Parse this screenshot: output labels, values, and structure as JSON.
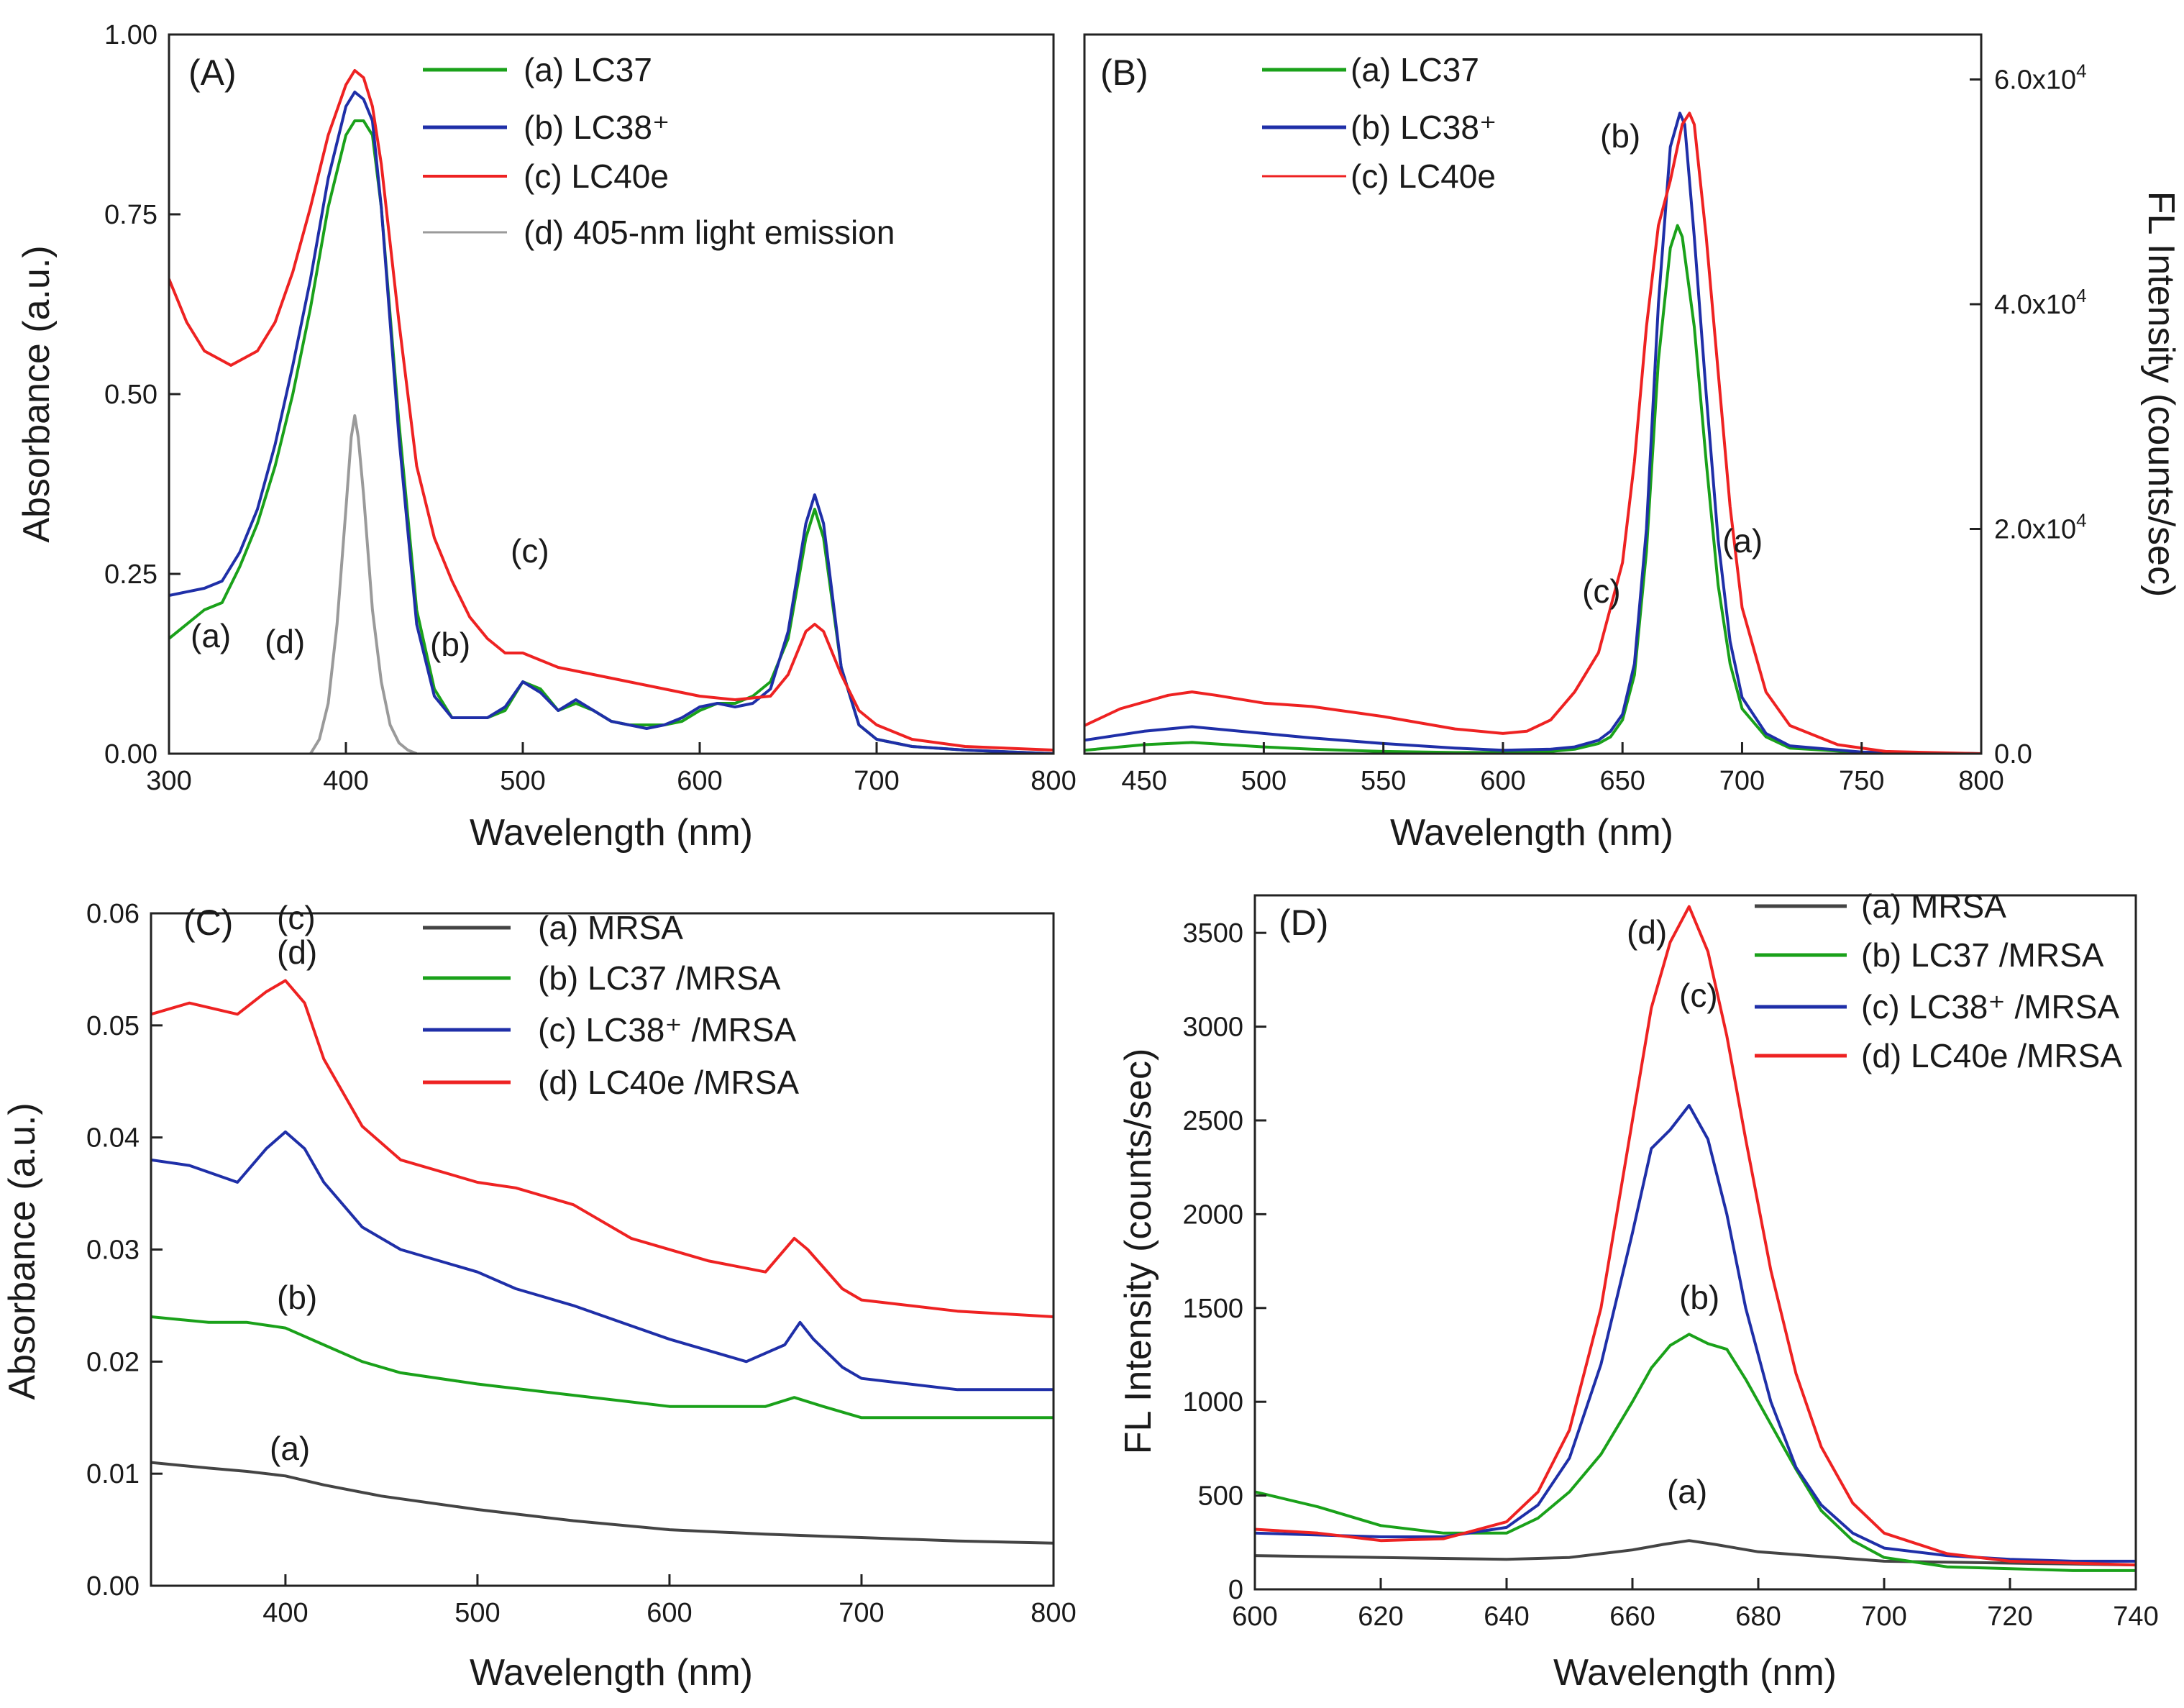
{
  "chart_data": [
    {
      "panel": "(A)",
      "type": "line",
      "xlabel": "Wavelength (nm)",
      "ylabel": "Absorbance (a.u.)",
      "xlim": [
        300,
        800
      ],
      "ylim": [
        0,
        1
      ],
      "xticks": [
        "300",
        "400",
        "500",
        "600",
        "700",
        "800"
      ],
      "yticks": [
        "0.00",
        "0.25",
        "0.50",
        "0.75",
        "1.00"
      ],
      "legend_position": "top-right",
      "series": [
        {
          "name": "(a) LC37",
          "color": "#1aa11a",
          "x": [
            300,
            320,
            330,
            340,
            350,
            360,
            370,
            380,
            390,
            400,
            405,
            410,
            415,
            420,
            430,
            440,
            450,
            460,
            470,
            480,
            490,
            500,
            510,
            520,
            530,
            540,
            550,
            560,
            570,
            580,
            590,
            600,
            610,
            620,
            630,
            640,
            650,
            660,
            665,
            670,
            680,
            690,
            700,
            720,
            750,
            800
          ],
          "y": [
            0.16,
            0.2,
            0.21,
            0.26,
            0.32,
            0.4,
            0.5,
            0.62,
            0.76,
            0.86,
            0.88,
            0.88,
            0.86,
            0.76,
            0.46,
            0.2,
            0.09,
            0.05,
            0.05,
            0.05,
            0.06,
            0.1,
            0.09,
            0.06,
            0.07,
            0.06,
            0.045,
            0.04,
            0.04,
            0.04,
            0.045,
            0.06,
            0.07,
            0.07,
            0.08,
            0.1,
            0.16,
            0.3,
            0.34,
            0.3,
            0.12,
            0.04,
            0.02,
            0.01,
            0.005,
            0.0
          ]
        },
        {
          "name": "(b) LC38⁺",
          "color": "#1f2fa8",
          "x": [
            300,
            320,
            330,
            340,
            350,
            360,
            370,
            380,
            390,
            400,
            405,
            410,
            415,
            420,
            430,
            440,
            450,
            460,
            470,
            480,
            490,
            500,
            510,
            520,
            530,
            540,
            550,
            560,
            570,
            580,
            590,
            600,
            610,
            620,
            630,
            640,
            650,
            660,
            665,
            670,
            680,
            690,
            700,
            720,
            750,
            800
          ],
          "y": [
            0.22,
            0.23,
            0.24,
            0.28,
            0.34,
            0.43,
            0.54,
            0.66,
            0.8,
            0.9,
            0.92,
            0.91,
            0.88,
            0.76,
            0.44,
            0.18,
            0.08,
            0.05,
            0.05,
            0.05,
            0.065,
            0.1,
            0.085,
            0.06,
            0.075,
            0.06,
            0.045,
            0.04,
            0.035,
            0.04,
            0.05,
            0.065,
            0.07,
            0.065,
            0.07,
            0.09,
            0.17,
            0.32,
            0.36,
            0.32,
            0.12,
            0.04,
            0.02,
            0.01,
            0.005,
            0.0
          ]
        },
        {
          "name": "(c) LC40e",
          "color": "#ee2222",
          "x": [
            300,
            310,
            320,
            335,
            350,
            360,
            370,
            380,
            390,
            400,
            405,
            410,
            415,
            420,
            430,
            440,
            450,
            460,
            470,
            480,
            490,
            500,
            510,
            520,
            540,
            560,
            580,
            600,
            620,
            640,
            650,
            660,
            665,
            670,
            680,
            690,
            700,
            720,
            750,
            800
          ],
          "y": [
            0.66,
            0.6,
            0.56,
            0.54,
            0.56,
            0.6,
            0.67,
            0.76,
            0.86,
            0.93,
            0.95,
            0.94,
            0.9,
            0.82,
            0.6,
            0.4,
            0.3,
            0.24,
            0.19,
            0.16,
            0.14,
            0.14,
            0.13,
            0.12,
            0.11,
            0.1,
            0.09,
            0.08,
            0.075,
            0.08,
            0.11,
            0.17,
            0.18,
            0.17,
            0.11,
            0.06,
            0.04,
            0.02,
            0.01,
            0.005
          ]
        },
        {
          "name": "(d) 405-nm light emission",
          "color": "#9a9a9a",
          "x": [
            380,
            385,
            390,
            395,
            400,
            403,
            405,
            407,
            410,
            415,
            420,
            425,
            430,
            435,
            440
          ],
          "y": [
            0.0,
            0.02,
            0.07,
            0.18,
            0.34,
            0.44,
            0.47,
            0.44,
            0.36,
            0.2,
            0.1,
            0.04,
            0.015,
            0.005,
            0.0
          ]
        }
      ],
      "annotations": [
        "(a)",
        "(b)",
        "(c)",
        "(d)"
      ]
    },
    {
      "panel": "(B)",
      "type": "line",
      "xlabel": "Wavelength (nm)",
      "ylabel": "FL Intensity (counts/sec)",
      "xlim": [
        425,
        800
      ],
      "ylim": [
        0,
        64000
      ],
      "xticks": [
        "450",
        "500",
        "550",
        "600",
        "650",
        "700",
        "750",
        "800"
      ],
      "yticks": [
        "0.0",
        "2.0x10",
        "4.0x10",
        "6.0x10"
      ],
      "ytick_exponent": "4",
      "y_axis_side": "right",
      "legend_position": "top-left",
      "series": [
        {
          "name": "(a) LC37",
          "color": "#1aa11a",
          "x": [
            425,
            450,
            470,
            500,
            520,
            550,
            580,
            600,
            620,
            630,
            640,
            645,
            650,
            655,
            660,
            665,
            670,
            673,
            675,
            680,
            685,
            690,
            695,
            700,
            710,
            720,
            750,
            800
          ],
          "y": [
            300,
            800,
            1000,
            600,
            400,
            200,
            100,
            100,
            200,
            400,
            900,
            1500,
            3000,
            7000,
            18000,
            35000,
            45000,
            47000,
            46000,
            38000,
            26000,
            15000,
            8000,
            4000,
            1500,
            500,
            100,
            0
          ]
        },
        {
          "name": "(b) LC38⁺",
          "color": "#1f2fa8",
          "x": [
            425,
            450,
            470,
            500,
            520,
            550,
            580,
            600,
            620,
            630,
            640,
            645,
            650,
            655,
            660,
            665,
            670,
            674,
            676,
            680,
            685,
            690,
            695,
            700,
            710,
            720,
            750,
            800
          ],
          "y": [
            1200,
            2000,
            2400,
            1800,
            1400,
            900,
            500,
            300,
            400,
            600,
            1200,
            2000,
            3500,
            8000,
            20000,
            40000,
            54000,
            57000,
            56000,
            46000,
            32000,
            19000,
            10000,
            5000,
            1800,
            700,
            150,
            0
          ]
        },
        {
          "name": "(c) LC40e",
          "color": "#ee2222",
          "x": [
            425,
            440,
            460,
            470,
            480,
            500,
            520,
            550,
            580,
            600,
            610,
            620,
            630,
            640,
            650,
            655,
            660,
            665,
            670,
            675,
            678,
            680,
            685,
            690,
            695,
            700,
            710,
            720,
            740,
            760,
            800
          ],
          "y": [
            2500,
            4000,
            5200,
            5500,
            5200,
            4500,
            4200,
            3300,
            2200,
            1800,
            2000,
            3000,
            5500,
            9000,
            17000,
            26000,
            38000,
            47000,
            51000,
            56000,
            57000,
            56000,
            46000,
            34000,
            22000,
            13000,
            5500,
            2500,
            800,
            200,
            0
          ]
        }
      ],
      "annotations": [
        "(a)",
        "(b)",
        "(c)"
      ]
    },
    {
      "panel": "(C)",
      "type": "line",
      "xlabel": "Wavelength (nm)",
      "ylabel": "Absorbance (a.u.)",
      "xlim": [
        330,
        800
      ],
      "ylim": [
        0,
        0.06
      ],
      "xticks": [
        "400",
        "500",
        "600",
        "700",
        "800"
      ],
      "yticks": [
        "0.00",
        "0.01",
        "0.02",
        "0.03",
        "0.04",
        "0.05",
        "0.06"
      ],
      "legend_position": "top-right",
      "series": [
        {
          "name": "(a) MRSA",
          "color": "#444444",
          "x": [
            330,
            360,
            380,
            400,
            420,
            450,
            500,
            550,
            600,
            650,
            700,
            750,
            800
          ],
          "y": [
            0.011,
            0.0105,
            0.0102,
            0.0098,
            0.009,
            0.008,
            0.0068,
            0.0058,
            0.005,
            0.0046,
            0.0043,
            0.004,
            0.0038
          ]
        },
        {
          "name": "(b) LC37 /MRSA",
          "color": "#1aa11a",
          "x": [
            330,
            360,
            380,
            400,
            420,
            440,
            460,
            500,
            550,
            600,
            650,
            665,
            680,
            700,
            750,
            800
          ],
          "y": [
            0.024,
            0.0235,
            0.0235,
            0.023,
            0.0215,
            0.02,
            0.019,
            0.018,
            0.017,
            0.016,
            0.016,
            0.0168,
            0.016,
            0.015,
            0.015,
            0.015
          ]
        },
        {
          "name": "(c) LC38⁺ /MRSA",
          "color": "#1f2fa8",
          "x": [
            330,
            350,
            375,
            390,
            400,
            410,
            420,
            440,
            460,
            500,
            520,
            550,
            600,
            640,
            660,
            668,
            675,
            690,
            700,
            750,
            800
          ],
          "y": [
            0.038,
            0.0375,
            0.036,
            0.039,
            0.0405,
            0.039,
            0.036,
            0.032,
            0.03,
            0.028,
            0.0265,
            0.025,
            0.022,
            0.02,
            0.0215,
            0.0235,
            0.022,
            0.0195,
            0.0185,
            0.0175,
            0.0175
          ]
        },
        {
          "name": "(d) LC40e /MRSA",
          "color": "#ee2222",
          "x": [
            330,
            350,
            375,
            390,
            400,
            410,
            420,
            440,
            460,
            500,
            520,
            550,
            580,
            620,
            650,
            665,
            672,
            690,
            700,
            750,
            800
          ],
          "y": [
            0.051,
            0.052,
            0.051,
            0.053,
            0.054,
            0.052,
            0.047,
            0.041,
            0.038,
            0.036,
            0.0355,
            0.034,
            0.031,
            0.029,
            0.028,
            0.031,
            0.03,
            0.0265,
            0.0255,
            0.0245,
            0.024
          ]
        }
      ],
      "annotations": [
        "(a)",
        "(b)",
        "(c)",
        "(d)"
      ]
    },
    {
      "panel": "(D)",
      "type": "line",
      "xlabel": "Wavelength (nm)",
      "ylabel": "FL Intensity (counts/sec)",
      "xlim": [
        600,
        740
      ],
      "ylim": [
        0,
        3700
      ],
      "xticks": [
        "600",
        "620",
        "640",
        "660",
        "680",
        "700",
        "720",
        "740"
      ],
      "yticks": [
        "0",
        "500",
        "1000",
        "1500",
        "2000",
        "2500",
        "3000",
        "3500"
      ],
      "legend_position": "top-right",
      "series": [
        {
          "name": "(a) MRSA",
          "color": "#444444",
          "x": [
            600,
            620,
            640,
            650,
            660,
            665,
            669,
            673,
            680,
            700,
            720,
            740
          ],
          "y": [
            180,
            170,
            160,
            170,
            210,
            240,
            260,
            240,
            200,
            150,
            140,
            130
          ]
        },
        {
          "name": "(b) LC37 /MRSA",
          "color": "#1aa11a",
          "x": [
            600,
            610,
            620,
            630,
            640,
            645,
            650,
            655,
            660,
            663,
            666,
            669,
            672,
            675,
            678,
            682,
            686,
            690,
            695,
            700,
            710,
            720,
            730,
            740
          ],
          "y": [
            520,
            440,
            340,
            300,
            300,
            380,
            520,
            720,
            1000,
            1180,
            1300,
            1360,
            1310,
            1280,
            1120,
            880,
            640,
            420,
            260,
            170,
            120,
            110,
            100,
            100
          ]
        },
        {
          "name": "(c) LC38⁺ /MRSA",
          "color": "#1f2fa8",
          "x": [
            600,
            610,
            620,
            630,
            640,
            645,
            650,
            655,
            660,
            663,
            666,
            669,
            672,
            675,
            678,
            682,
            686,
            690,
            695,
            700,
            710,
            720,
            730,
            740
          ],
          "y": [
            300,
            290,
            280,
            280,
            330,
            450,
            700,
            1200,
            1900,
            2350,
            2450,
            2580,
            2400,
            2000,
            1500,
            1000,
            650,
            450,
            300,
            220,
            180,
            160,
            150,
            150
          ]
        },
        {
          "name": "(d) LC40e /MRSA",
          "color": "#ee2222",
          "x": [
            600,
            610,
            620,
            630,
            640,
            645,
            650,
            655,
            660,
            663,
            666,
            669,
            672,
            675,
            678,
            682,
            686,
            690,
            695,
            700,
            710,
            720,
            730,
            740
          ],
          "y": [
            320,
            300,
            260,
            270,
            360,
            520,
            850,
            1500,
            2500,
            3100,
            3450,
            3640,
            3400,
            2950,
            2400,
            1700,
            1150,
            760,
            460,
            300,
            190,
            150,
            140,
            130
          ]
        }
      ],
      "annotations": [
        "(a)",
        "(b)",
        "(c)",
        "(d)"
      ]
    }
  ]
}
